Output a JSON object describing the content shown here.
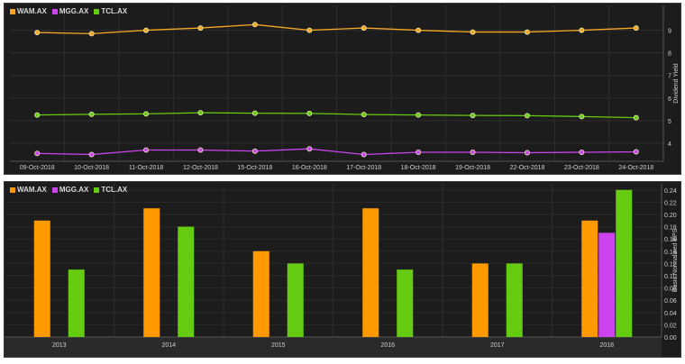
{
  "chart_data": [
    {
      "type": "line",
      "ylabel": "Dividend Yield",
      "x": [
        "09-Oct-2018",
        "10-Oct-2018",
        "11-Oct-2018",
        "12-Oct-2018",
        "15-Oct-2018",
        "16-Oct-2018",
        "17-Oct-2018",
        "18-Oct-2018",
        "19-Oct-2018",
        "22-Oct-2018",
        "23-Oct-2018",
        "24-Oct-2018"
      ],
      "ylim": [
        3.2,
        10.1
      ],
      "yticks": [
        4,
        5,
        6,
        7,
        8,
        9
      ],
      "series": [
        {
          "name": "WAM.AX",
          "color": "#f5a623",
          "values": [
            8.9,
            8.85,
            9.0,
            9.1,
            9.25,
            9.0,
            9.1,
            9.0,
            8.92,
            8.92,
            9.0,
            9.1
          ]
        },
        {
          "name": "MGG.AX",
          "color": "#cc44ee",
          "values": [
            3.55,
            3.5,
            3.7,
            3.7,
            3.65,
            3.75,
            3.5,
            3.6,
            3.6,
            3.58,
            3.6,
            3.62
          ]
        },
        {
          "name": "TCL.AX",
          "color": "#66cc11",
          "values": [
            5.25,
            5.28,
            5.3,
            5.35,
            5.33,
            5.32,
            5.27,
            5.25,
            5.23,
            5.22,
            5.18,
            5.13
          ]
        }
      ],
      "grid": true,
      "legend": "top-left"
    },
    {
      "type": "bar",
      "ylabel": "Basic Normalized EPS",
      "categories": [
        "2013",
        "2014",
        "2015",
        "2016",
        "2017",
        "2018"
      ],
      "ylim": [
        0,
        0.25
      ],
      "yticks": [
        0.0,
        0.02,
        0.04,
        0.06,
        0.08,
        0.1,
        0.12,
        0.14,
        0.16,
        0.18,
        0.2,
        0.22,
        0.24
      ],
      "series": [
        {
          "name": "WAM.AX",
          "color": "#ff9900",
          "values": [
            0.19,
            0.21,
            0.14,
            0.21,
            0.12,
            0.19
          ]
        },
        {
          "name": "MGG.AX",
          "color": "#cc44ee",
          "values": [
            null,
            null,
            null,
            null,
            null,
            0.17
          ]
        },
        {
          "name": "TCL.AX",
          "color": "#66cc11",
          "values": [
            0.11,
            0.18,
            0.12,
            0.11,
            0.12,
            0.24
          ]
        }
      ],
      "grid": true,
      "legend": "top-left"
    }
  ]
}
